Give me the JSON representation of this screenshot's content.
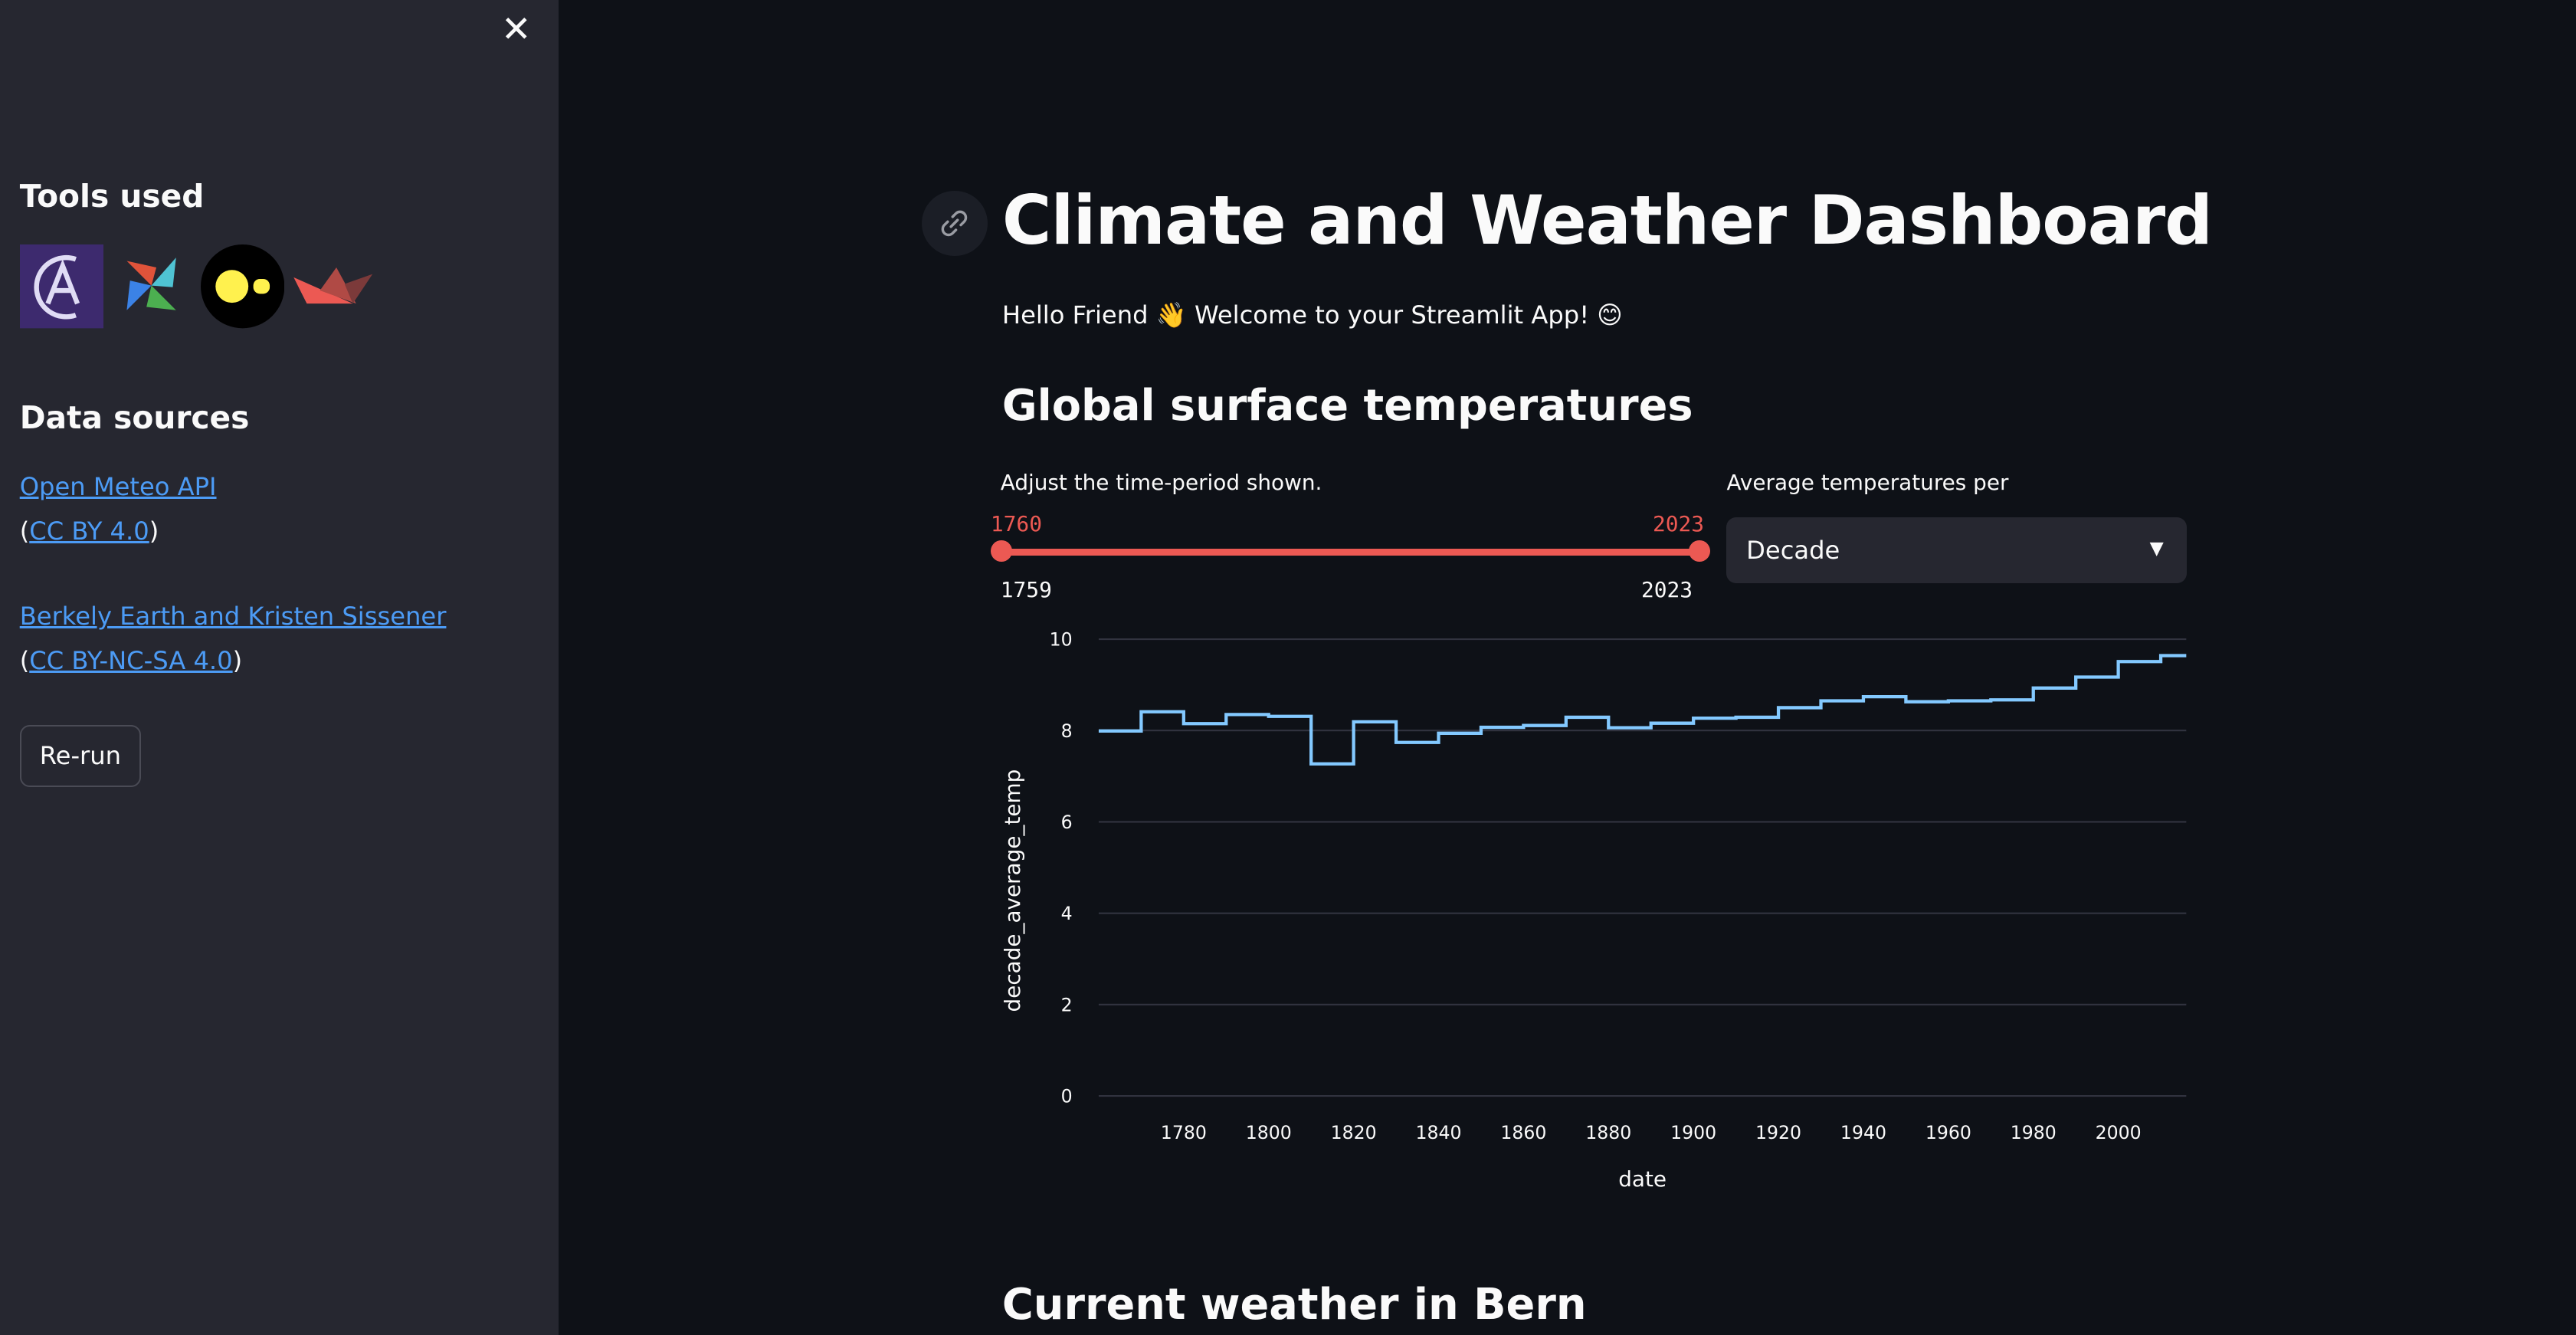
{
  "sidebar": {
    "close_icon": "close-icon",
    "tools_heading": "Tools used",
    "tool_logos": [
      "astronomer-logo",
      "airflow-logo",
      "duckdb-logo",
      "streamlit-logo"
    ],
    "sources_heading": "Data sources",
    "sources": [
      {
        "name": "Open Meteo API",
        "license": "CC BY 4.0"
      },
      {
        "name": "Berkely Earth and Kristen Sissener",
        "license": "CC BY-NC-SA 4.0"
      }
    ],
    "paren_open": "(",
    "paren_close": ")",
    "rerun_label": "Re-run"
  },
  "main": {
    "link_icon": "link-icon",
    "title": "Climate and Weather Dashboard",
    "greeting": "Hello Friend 👋 Welcome to your Streamlit App! 😊",
    "section1": "Global surface temperatures",
    "slider": {
      "label": "Adjust the time-period shown.",
      "value_low": "1760",
      "value_high": "2023",
      "min": "1759",
      "max": "2023",
      "accent": "#ec5953"
    },
    "select": {
      "label": "Average temperatures per",
      "value": "Decade"
    },
    "section2": "Current weather in Bern"
  },
  "chart_data": {
    "type": "line",
    "interpolation": "step",
    "xlabel": "date",
    "ylabel": "decade_average_temp",
    "xlim": [
      1760,
      2016
    ],
    "ylim": [
      0,
      10
    ],
    "xticks": [
      1780,
      1800,
      1820,
      1840,
      1860,
      1880,
      1900,
      1920,
      1940,
      1960,
      1980,
      2000
    ],
    "yticks": [
      0,
      2,
      4,
      6,
      8,
      10
    ],
    "grid": true,
    "color": "#83c9ff",
    "x": [
      1760,
      1770,
      1780,
      1790,
      1800,
      1810,
      1820,
      1830,
      1840,
      1850,
      1860,
      1870,
      1880,
      1890,
      1900,
      1910,
      1920,
      1930,
      1940,
      1950,
      1960,
      1970,
      1980,
      1990,
      2000,
      2010
    ],
    "y": [
      7.99,
      8.41,
      8.15,
      8.35,
      8.31,
      7.27,
      8.19,
      7.74,
      7.94,
      8.07,
      8.11,
      8.29,
      8.06,
      8.16,
      8.27,
      8.29,
      8.5,
      8.65,
      8.74,
      8.63,
      8.65,
      8.67,
      8.93,
      9.17,
      9.51,
      9.64
    ]
  }
}
